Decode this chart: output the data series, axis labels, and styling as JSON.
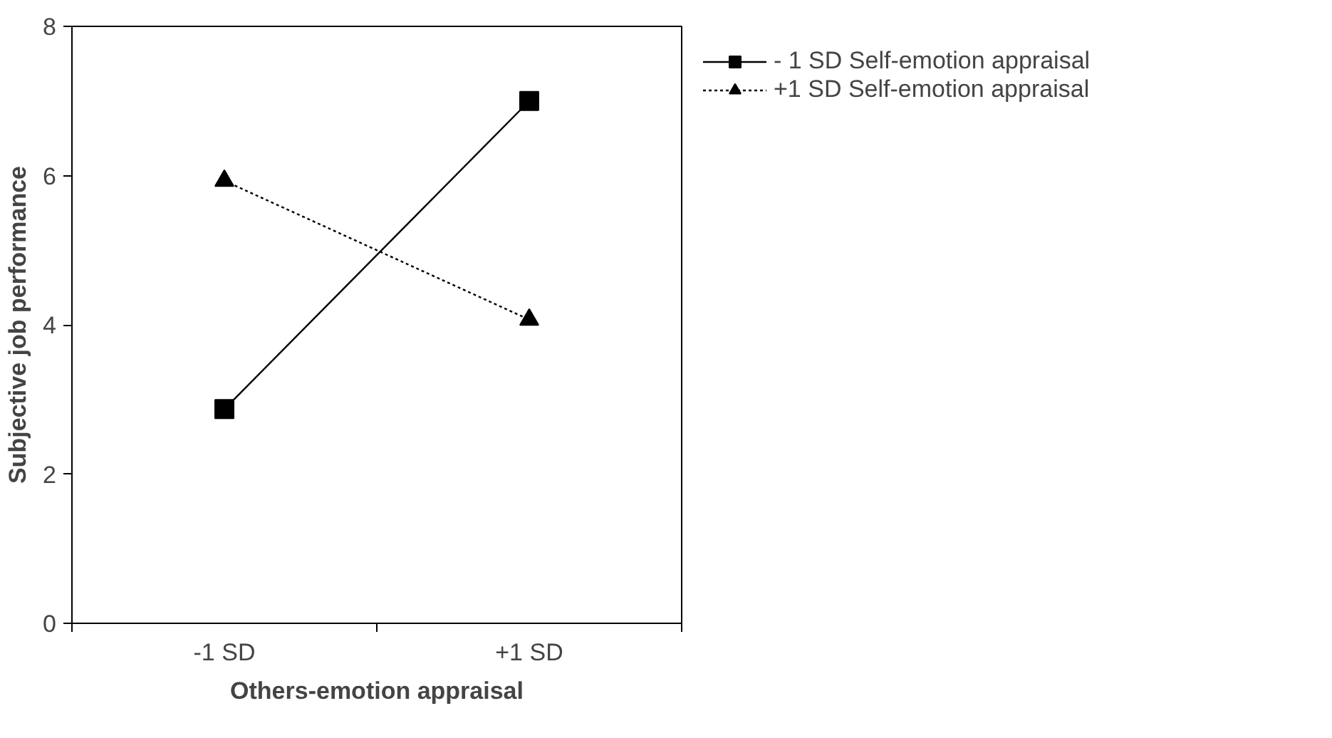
{
  "chart_data": {
    "type": "line",
    "xlabel": "Others-emotion appraisal",
    "ylabel": "Subjective job performance",
    "categories": [
      "-1 SD",
      "+1 SD"
    ],
    "series": [
      {
        "name": "- 1 SD Self-emotion appraisal",
        "color": "#000000",
        "values": [
          2.87,
          7.0
        ],
        "marker": "square",
        "line_style": "solid"
      },
      {
        "name": "+1 SD Self-emotion appraisal",
        "color": "#000000",
        "values": [
          5.93,
          4.07
        ],
        "marker": "triangle",
        "line_style": "dotted"
      }
    ],
    "ylim": [
      0,
      8
    ],
    "yticks": [
      0,
      2,
      4,
      6,
      8
    ],
    "grid": false,
    "legend": "top right"
  }
}
